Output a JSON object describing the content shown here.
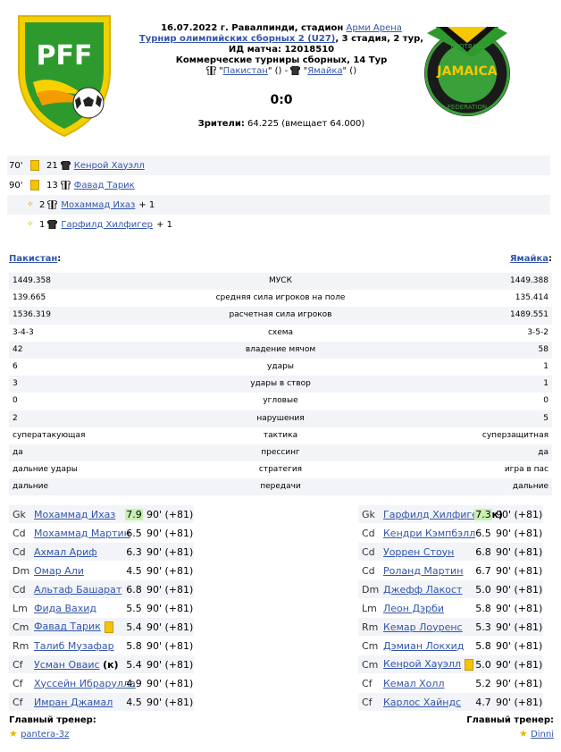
{
  "match": {
    "date_place": "16.07.2022 г. Равалпинди, стадион",
    "stadium": "Арми Арена",
    "tournament": "Турнир олимпийских сборных 2 (U27)",
    "stage": ", 3 стадия, 2 тур,",
    "id_line": "ИД матча: 12018510",
    "commercial": "Коммерческие турниры сборных, 14 Тур",
    "home_team": "Пакистан",
    "away_team": "Ямайка",
    "home_paren": "()",
    "away_paren": "()",
    "dash": "-",
    "score": "0:0",
    "spectators_label": "Зрители:",
    "spectators_value": "64.225 (вмещает 64.000)"
  },
  "logos": {
    "home_text": "PFF",
    "away_text_top": "FOOTBALL",
    "away_text_mid": "JAMAICA",
    "away_text_bot": "FEDERATION"
  },
  "events": [
    {
      "minute": "70'",
      "type": "yellow",
      "number": "21",
      "player": "Кенрой Хауэлл"
    },
    {
      "minute": "90'",
      "type": "yellow",
      "number": "13",
      "player": "Фавад Тарик"
    },
    {
      "minute": "",
      "type": "assist",
      "number": "2",
      "player": "Мохаммад Ихаз",
      "extra": "+ 1"
    },
    {
      "minute": "",
      "type": "assist",
      "number": "1",
      "player": "Гарфилд Хилфигер",
      "extra": "+ 1"
    }
  ],
  "teams_header": {
    "home": "Пакистан",
    "away": "Ямайка"
  },
  "stats": [
    {
      "home": "1449.358",
      "label": "МУСК",
      "away": "1449.388"
    },
    {
      "home": "139.665",
      "label": "средняя сила игроков на поле",
      "away": "135.414"
    },
    {
      "home": "1536.319",
      "label": "расчетная сила игроков",
      "away": "1489.551"
    },
    {
      "home": "3-4-3",
      "label": "схема",
      "away": "3-5-2"
    },
    {
      "home": "42",
      "label": "владение мячом",
      "away": "58"
    },
    {
      "home": "6",
      "label": "удары",
      "away": "1"
    },
    {
      "home": "3",
      "label": "удары в створ",
      "away": "1"
    },
    {
      "home": "0",
      "label": "угловые",
      "away": "0"
    },
    {
      "home": "2",
      "label": "нарушения",
      "away": "5"
    },
    {
      "home": "суператакующая",
      "label": "тактика",
      "away": "суперзащитная"
    },
    {
      "home": "да",
      "label": "прессинг",
      "away": "да"
    },
    {
      "home": "дальние удары",
      "label": "стратегия",
      "away": "игра в пас"
    },
    {
      "home": "дальние",
      "label": "передачи",
      "away": "дальние"
    }
  ],
  "home_lineup": [
    {
      "pos": "Gk",
      "name": "Мохаммад Ихаз",
      "rating": "7.9",
      "best": true,
      "mins": "90' (+81)"
    },
    {
      "pos": "Cd",
      "name": "Мохаммад Мартин",
      "rating": "6.5",
      "mins": "90' (+81)"
    },
    {
      "pos": "Cd",
      "name": "Ахмал Ариф",
      "rating": "6.3",
      "mins": "90' (+81)"
    },
    {
      "pos": "Dm",
      "name": "Омар Али",
      "rating": "4.5",
      "mins": "90' (+81)"
    },
    {
      "pos": "Cd",
      "name": "Альтаф Башарат",
      "rating": "6.8",
      "mins": "90' (+81)"
    },
    {
      "pos": "Lm",
      "name": "Фида Вахид",
      "rating": "5.5",
      "mins": "90' (+81)"
    },
    {
      "pos": "Cm",
      "name": "Фавад Тарик",
      "rating": "5.4",
      "mins": "90' (+81)",
      "yellow": true
    },
    {
      "pos": "Rm",
      "name": "Талиб Музафар",
      "rating": "5.8",
      "mins": "90' (+81)"
    },
    {
      "pos": "Cf",
      "name": "Усман Оваис",
      "captain": "(к)",
      "rating": "5.4",
      "mins": "90' (+81)"
    },
    {
      "pos": "Cf",
      "name": "Хуссейн Ибрарулла",
      "rating": "4.9",
      "mins": "90' (+81)"
    },
    {
      "pos": "Cf",
      "name": "Имран Джамал",
      "rating": "4.5",
      "mins": "90' (+81)"
    }
  ],
  "away_lineup": [
    {
      "pos": "Gk",
      "name": "Гарфилд Хилфигер",
      "captain": "(к)",
      "rating": "7.3",
      "best": true,
      "mins": "90' (+81)"
    },
    {
      "pos": "Cd",
      "name": "Кендри Кэмпбэлл",
      "rating": "6.5",
      "mins": "90' (+81)"
    },
    {
      "pos": "Cd",
      "name": "Уоррен Стоун",
      "rating": "6.8",
      "mins": "90' (+81)"
    },
    {
      "pos": "Cd",
      "name": "Роланд Мартин",
      "rating": "6.7",
      "mins": "90' (+81)"
    },
    {
      "pos": "Dm",
      "name": "Джефф Лакост",
      "rating": "5.0",
      "mins": "90' (+81)"
    },
    {
      "pos": "Lm",
      "name": "Леон Дэрби",
      "rating": "5.8",
      "mins": "90' (+81)"
    },
    {
      "pos": "Rm",
      "name": "Кемар Лоуренс",
      "rating": "5.3",
      "mins": "90' (+81)"
    },
    {
      "pos": "Cm",
      "name": "Дэмиан Локхид",
      "rating": "5.8",
      "mins": "90' (+81)"
    },
    {
      "pos": "Cm",
      "name": "Кенрой Хауэлл",
      "rating": "5.0",
      "mins": "90' (+81)",
      "yellow": true
    },
    {
      "pos": "Cf",
      "name": "Кемал Холл",
      "rating": "5.2",
      "mins": "90' (+81)"
    },
    {
      "pos": "Cf",
      "name": "Карлос Хайндс",
      "rating": "4.7",
      "mins": "90' (+81)"
    }
  ],
  "coaches": {
    "home_label": "Главный тренер:",
    "home_name": "pantera-3z",
    "away_label": "Главный тренер:",
    "away_name": "Dinni"
  },
  "colors": {
    "link": "#3355aa",
    "row_alt": "#f2f4f7",
    "best_rating": "#c8f0b0",
    "yellow_card": "#f5c400"
  }
}
